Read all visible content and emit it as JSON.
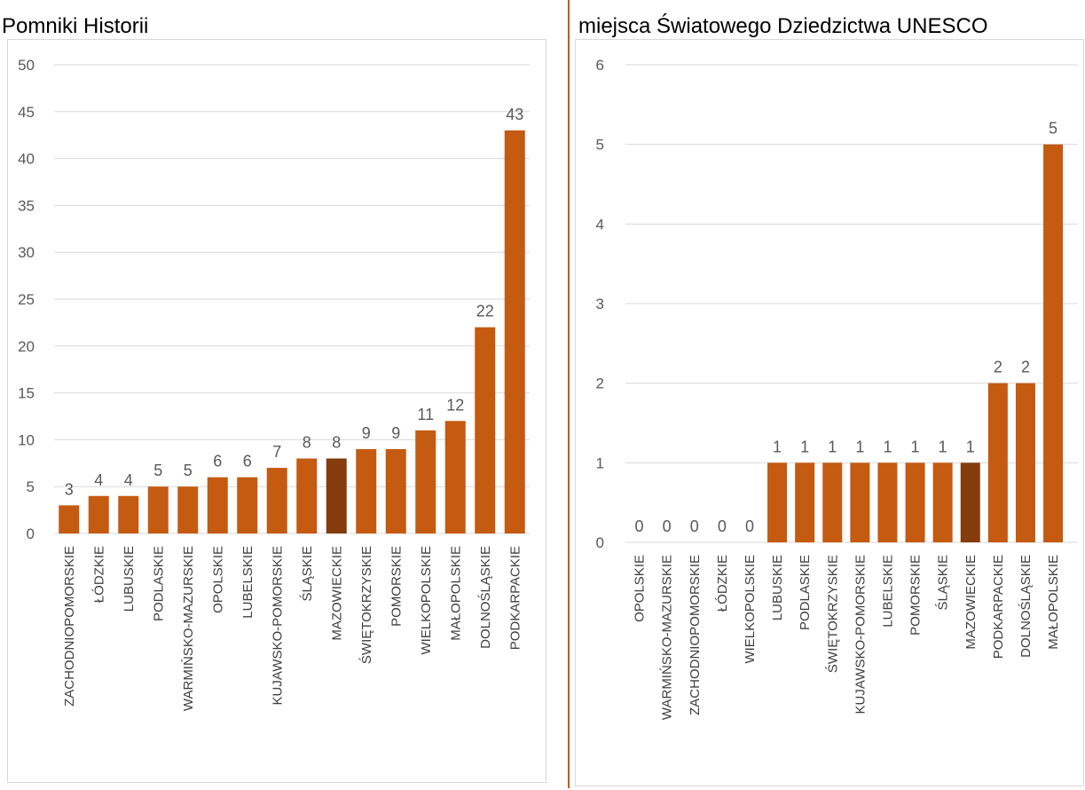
{
  "colors": {
    "bar": "#C55A11",
    "highlight": "#843C0C",
    "divider": "#C55A11",
    "grid": "#d9d9d9",
    "label": "#595959"
  },
  "chart_data": [
    {
      "type": "bar",
      "title": "Pomniki Historii",
      "categories": [
        "ZACHODNIOPOMORSKIE",
        "ŁÓDZKIE",
        "LUBUSKIE",
        "PODLASKIE",
        "WARMIŃSKO-MAZURSKIE",
        "OPOLSKIE",
        "LUBELSKIE",
        "KUJAWSKO-POMORSKIE",
        "ŚLĄSKIE",
        "MAZOWIECKIE",
        "ŚWIĘTOKRZYSKIE",
        "POMORSKIE",
        "WIELKOPOLSKIE",
        "MAŁOPOLSKIE",
        "DOLNOŚLĄSKIE",
        "PODKARPACKIE"
      ],
      "values": [
        3,
        4,
        4,
        5,
        5,
        6,
        6,
        7,
        8,
        8,
        9,
        9,
        11,
        12,
        22,
        43
      ],
      "value_labels": [
        "3",
        "4",
        "4",
        "5",
        "5",
        "6",
        "6",
        "7",
        "8",
        "8",
        "9",
        "9",
        "11",
        "12",
        "22",
        "43"
      ],
      "highlight": "MAZOWIECKIE",
      "ylim": [
        0,
        50
      ],
      "yticks": [
        0,
        5,
        10,
        15,
        20,
        25,
        30,
        35,
        40,
        45,
        50
      ],
      "ytick_labels": [
        "0",
        "5",
        "10",
        "15",
        "20",
        "25",
        "30",
        "35",
        "40",
        "45",
        "50"
      ],
      "grid": true,
      "legend": "none"
    },
    {
      "type": "bar",
      "title": "miejsca Światowego Dziedzictwa UNESCO",
      "categories": [
        "OPOLSKIE",
        "WARMIŃSKO-MAZURSKIE",
        "ZACHODNIOPOMORSKIE",
        "ŁÓDZKIE",
        "WIELKOPOLSKIE",
        "LUBUSKIE",
        "PODLASKIE",
        "ŚWIĘTOKRZYSKIE",
        "KUJAWSKO-POMORSKIE",
        "LUBELSKIE",
        "POMORSKIE",
        "ŚLĄSKIE",
        "MAZOWIECKIE",
        "PODKARPACKIE",
        "DOLNOŚLĄSKIE",
        "MAŁOPOLSKIE"
      ],
      "values": [
        0,
        0,
        0,
        0,
        0,
        1,
        1,
        1,
        1,
        1,
        1,
        1,
        1,
        2,
        2,
        5
      ],
      "value_labels": [
        "0",
        "0",
        "0",
        "0",
        "0",
        "1",
        "1",
        "1",
        "1",
        "1",
        "1",
        "1",
        "1",
        "2",
        "2",
        "5"
      ],
      "highlight": "MAZOWIECKIE",
      "ylim": [
        0,
        6
      ],
      "yticks": [
        0,
        1,
        2,
        3,
        4,
        5,
        6
      ],
      "ytick_labels": [
        "0",
        "1",
        "2",
        "3",
        "4",
        "5",
        "6"
      ],
      "grid": true,
      "legend": "none"
    }
  ]
}
